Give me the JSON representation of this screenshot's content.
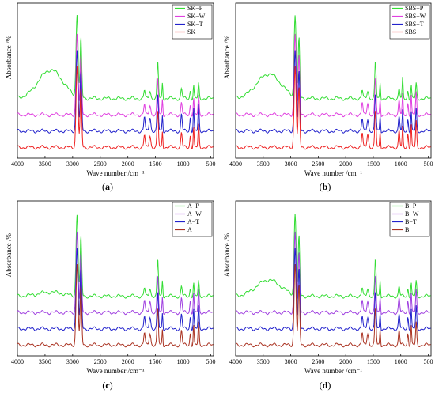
{
  "figure": {
    "panel_labels": [
      "(a)",
      "(b)",
      "(c)",
      "(d)"
    ]
  },
  "chart_data": [
    {
      "type": "line",
      "panel": "(a)",
      "xlabel": "Wave number /cm⁻¹",
      "ylabel": "Absorbance /%",
      "xlim": [
        4000,
        450
      ],
      "x_reversed": true,
      "xticks": [
        "4000",
        "3500",
        "3000",
        "2500",
        "2000",
        "1500",
        "1000",
        "500"
      ],
      "legend_position": "top-right",
      "series": [
        {
          "name": "SK−P",
          "color": "#33dd33",
          "offset": 3,
          "broad_oh": 0.35,
          "extra_bands": 0.2
        },
        {
          "name": "SK−W",
          "color": "#e040e0",
          "offset": 2,
          "broad_oh": 0.0,
          "extra_bands": 0.25
        },
        {
          "name": "SK−T",
          "color": "#2222cc",
          "offset": 1,
          "broad_oh": 0.0,
          "extra_bands": 0.35
        },
        {
          "name": "SK",
          "color": "#ee2222",
          "offset": 0,
          "broad_oh": 0.0,
          "extra_bands": 0.3
        }
      ],
      "peaks_cm1": [
        2920,
        2850,
        1460,
        1375,
        720
      ]
    },
    {
      "type": "line",
      "panel": "(b)",
      "xlabel": "Wave number /cm⁻¹",
      "ylabel": "Absorbance /%",
      "xlim": [
        4000,
        450
      ],
      "x_reversed": true,
      "xticks": [
        "4000",
        "3500",
        "3000",
        "2500",
        "2000",
        "1500",
        "1000",
        "500"
      ],
      "legend_position": "top-right",
      "series": [
        {
          "name": "SBS−P",
          "color": "#33dd33",
          "offset": 3,
          "broad_oh": 0.3,
          "extra_bands": 0.2
        },
        {
          "name": "SBS−W",
          "color": "#e040e0",
          "offset": 2,
          "broad_oh": 0.0,
          "extra_bands": 0.3
        },
        {
          "name": "SBS−T",
          "color": "#2222cc",
          "offset": 1,
          "broad_oh": 0.0,
          "extra_bands": 0.3
        },
        {
          "name": "SBS",
          "color": "#ee2222",
          "offset": 0,
          "broad_oh": 0.0,
          "extra_bands": 0.35
        }
      ],
      "peaks_cm1": [
        2920,
        2850,
        1460,
        1375,
        966,
        720
      ]
    },
    {
      "type": "line",
      "panel": "(c)",
      "xlabel": "Wave number /cm⁻¹",
      "ylabel": "Absorbance /%",
      "xlim": [
        4000,
        450
      ],
      "x_reversed": true,
      "xticks": [
        "4000",
        "3500",
        "3000",
        "2500",
        "2000",
        "1500",
        "1000",
        "500"
      ],
      "legend_position": "top-right",
      "series": [
        {
          "name": "A−P",
          "color": "#33dd33",
          "offset": 3,
          "broad_oh": 0.05,
          "extra_bands": 0.2
        },
        {
          "name": "A−W",
          "color": "#a040e0",
          "offset": 2,
          "broad_oh": 0.0,
          "extra_bands": 0.3
        },
        {
          "name": "A−T",
          "color": "#2222cc",
          "offset": 1,
          "broad_oh": 0.0,
          "extra_bands": 0.3
        },
        {
          "name": "A",
          "color": "#aa3322",
          "offset": 0,
          "broad_oh": 0.0,
          "extra_bands": 0.3
        }
      ],
      "peaks_cm1": [
        2920,
        2850,
        1460,
        1375,
        720
      ]
    },
    {
      "type": "line",
      "panel": "(d)",
      "xlabel": "Wave number /cm⁻¹",
      "ylabel": "Absorbance /%",
      "xlim": [
        4000,
        450
      ],
      "x_reversed": true,
      "xticks": [
        "4000",
        "3500",
        "3000",
        "2500",
        "2000",
        "1500",
        "1000",
        "500"
      ],
      "legend_position": "top-right",
      "series": [
        {
          "name": "B−P",
          "color": "#33dd33",
          "offset": 3,
          "broad_oh": 0.2,
          "extra_bands": 0.2
        },
        {
          "name": "B−W",
          "color": "#a040e0",
          "offset": 2,
          "broad_oh": 0.0,
          "extra_bands": 0.3
        },
        {
          "name": "B−T",
          "color": "#2222cc",
          "offset": 1,
          "broad_oh": 0.0,
          "extra_bands": 0.3
        },
        {
          "name": "B",
          "color": "#aa3322",
          "offset": 0,
          "broad_oh": 0.0,
          "extra_bands": 0.3
        }
      ],
      "peaks_cm1": [
        2920,
        2850,
        1460,
        1375,
        720
      ]
    }
  ]
}
